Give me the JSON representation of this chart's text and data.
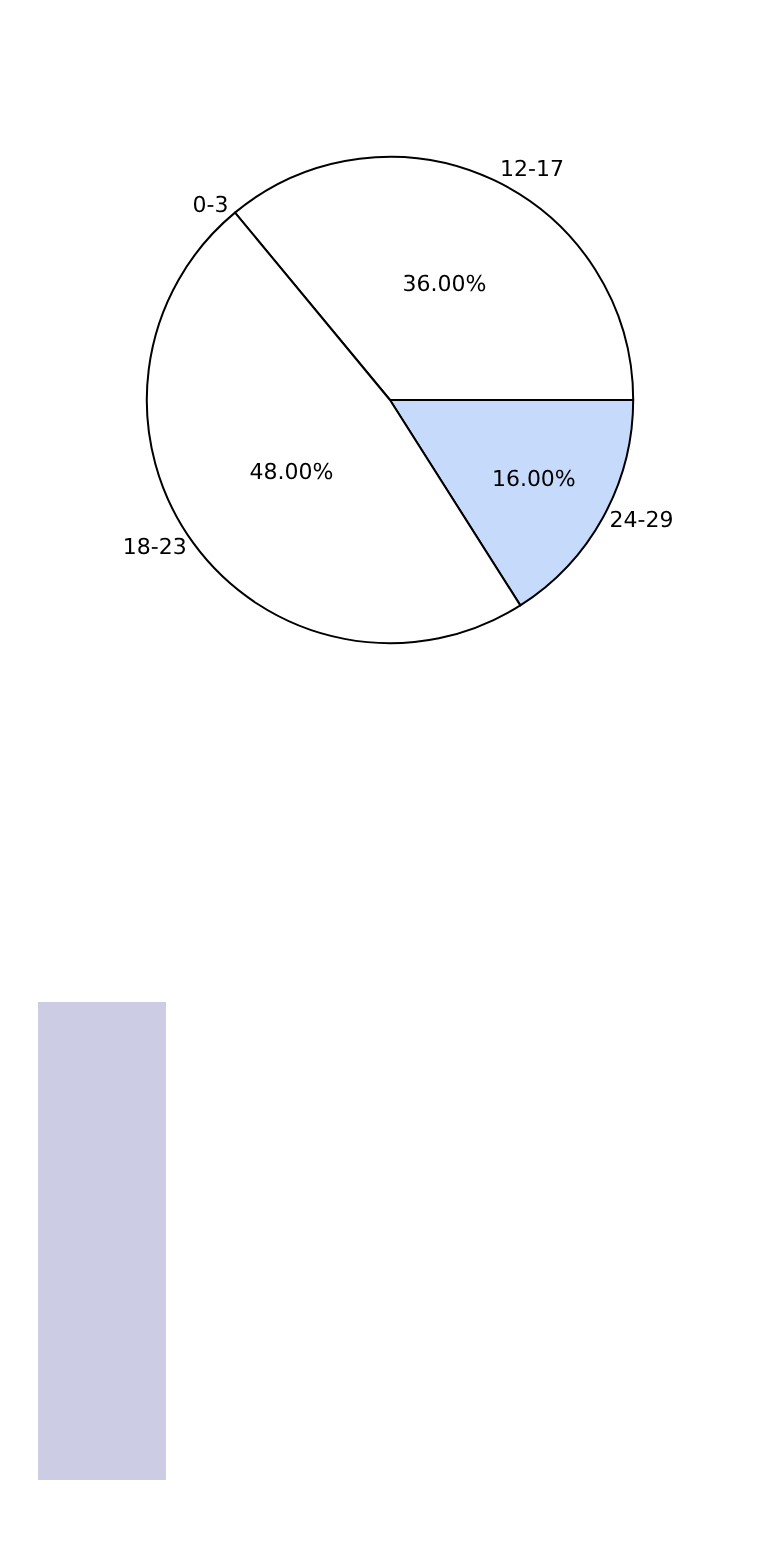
{
  "chart_data": {
    "type": "pie",
    "categories": [
      "12-17",
      "24-29",
      "18-23",
      "0-3"
    ],
    "values": [
      36,
      16,
      48,
      0
    ],
    "colors": [
      "#ffffff",
      "#c6dafc",
      "#ffffff",
      "#ffffff"
    ],
    "value_labels": [
      "36.00%",
      "16.00%",
      "48.00%",
      null
    ],
    "legend": false
  }
}
